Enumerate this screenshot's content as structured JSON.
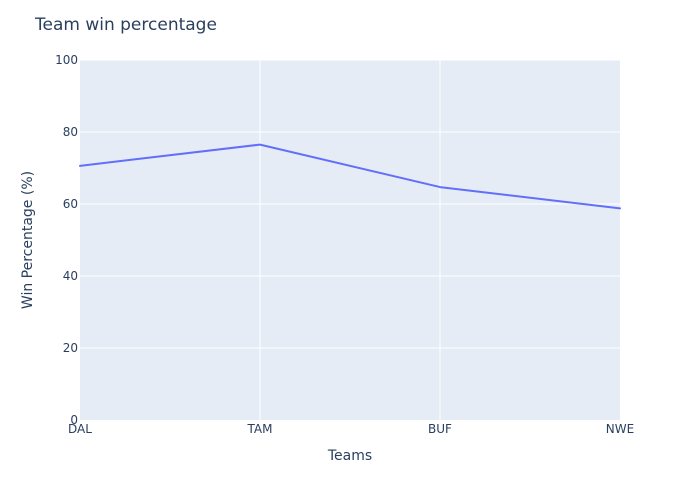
{
  "chart_data": {
    "type": "line",
    "title": "Team win percentage",
    "xlabel": "Teams",
    "ylabel": "Win Percentage (%)",
    "categories": [
      "DAL",
      "TAM",
      "BUF",
      "NWE"
    ],
    "series": [
      {
        "values": [
          70.6,
          76.5,
          64.7,
          58.8
        ],
        "color": "#636efa"
      }
    ],
    "ylim": [
      0,
      100
    ],
    "yticks": [
      0,
      20,
      40,
      60,
      80,
      100
    ],
    "grid": true,
    "plot_background": "#e5ecf6"
  }
}
